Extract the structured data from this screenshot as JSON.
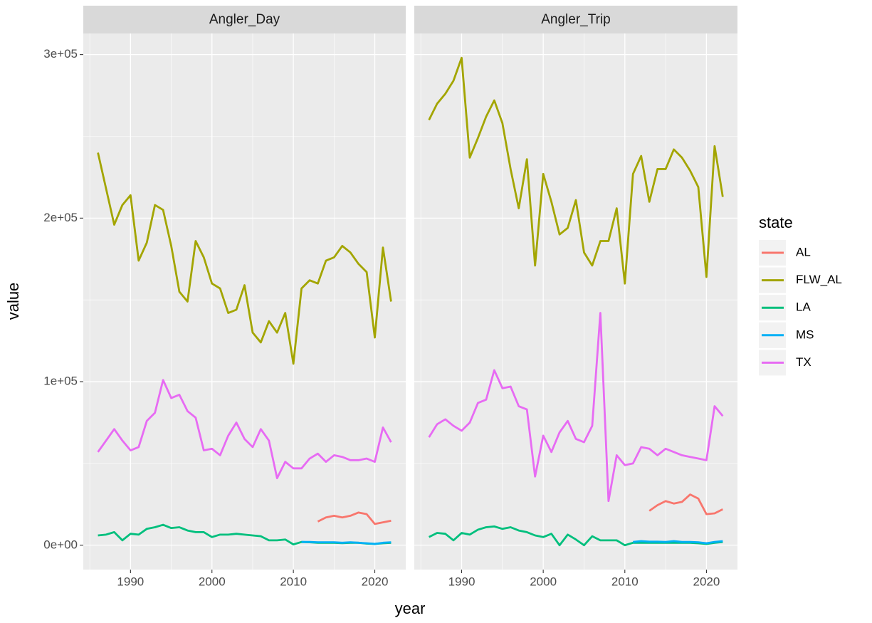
{
  "shared": {
    "xlabel": "year",
    "ylabel": "value",
    "legend_title": "state"
  },
  "chart_data": [
    {
      "type": "line",
      "title": "Angler_Day",
      "x": [
        1986,
        1987,
        1988,
        1989,
        1990,
        1991,
        1992,
        1993,
        1994,
        1995,
        1996,
        1997,
        1998,
        1999,
        2000,
        2001,
        2002,
        2003,
        2004,
        2005,
        2006,
        2007,
        2008,
        2009,
        2010,
        2011,
        2012,
        2013,
        2014,
        2015,
        2016,
        2017,
        2018,
        2019,
        2020,
        2021,
        2022
      ],
      "xlim": [
        1984.2,
        2023.8
      ],
      "xticks": [
        1990,
        2000,
        2010,
        2020
      ],
      "ylim": [
        -14900,
        312900
      ],
      "yticks": [
        {
          "value": 0,
          "label": "0e+00"
        },
        {
          "value": 100000,
          "label": "1e+05"
        },
        {
          "value": 200000,
          "label": "2e+05"
        },
        {
          "value": 300000,
          "label": "3e+05"
        }
      ],
      "grid": true,
      "series": [
        {
          "name": "AL",
          "color": "#F8766D",
          "values": [
            null,
            null,
            null,
            null,
            null,
            null,
            null,
            null,
            null,
            null,
            null,
            null,
            null,
            null,
            null,
            null,
            null,
            null,
            null,
            null,
            null,
            null,
            null,
            null,
            null,
            null,
            null,
            14500,
            17000,
            18000,
            17000,
            18000,
            20000,
            19000,
            13000,
            14000,
            15000
          ]
        },
        {
          "name": "FLW_AL",
          "color": "#A3A500",
          "values": [
            240000,
            218000,
            196000,
            208000,
            214000,
            174000,
            185000,
            208000,
            205000,
            183000,
            155000,
            149000,
            186000,
            176000,
            160000,
            157000,
            142000,
            144000,
            159000,
            130000,
            124000,
            137000,
            130000,
            142000,
            111000,
            157000,
            162000,
            160000,
            174000,
            176000,
            183000,
            179000,
            172000,
            167000,
            127000,
            182000,
            149000
          ]
        },
        {
          "name": "LA",
          "color": "#00BF7D",
          "values": [
            6000,
            6500,
            8000,
            3000,
            7000,
            6500,
            10000,
            11000,
            12500,
            10500,
            11000,
            9000,
            8000,
            8000,
            5000,
            6500,
            6500,
            7000,
            6500,
            6000,
            5500,
            3000,
            3000,
            3500,
            500,
            2000,
            1800,
            1500,
            1500,
            1500,
            1300,
            1500,
            1500,
            1000,
            800,
            1200,
            1500
          ]
        },
        {
          "name": "MS",
          "color": "#00B0F6",
          "values": [
            null,
            null,
            null,
            null,
            null,
            null,
            null,
            null,
            null,
            null,
            null,
            null,
            null,
            null,
            null,
            null,
            null,
            null,
            null,
            null,
            null,
            null,
            null,
            null,
            null,
            2000,
            2000,
            1800,
            1800,
            1800,
            1500,
            1800,
            1500,
            1200,
            800,
            1500,
            1800
          ]
        },
        {
          "name": "TX",
          "color": "#E76BF3",
          "values": [
            57000,
            64000,
            71000,
            64000,
            58000,
            60000,
            76000,
            81000,
            101000,
            90000,
            92000,
            82000,
            78000,
            58000,
            59000,
            55000,
            67000,
            75000,
            65000,
            60000,
            71000,
            64000,
            41000,
            51000,
            47000,
            47000,
            53000,
            56000,
            51000,
            55000,
            54000,
            52000,
            52000,
            53000,
            51000,
            72000,
            63000
          ]
        }
      ]
    },
    {
      "type": "line",
      "title": "Angler_Trip",
      "x": [
        1986,
        1987,
        1988,
        1989,
        1990,
        1991,
        1992,
        1993,
        1994,
        1995,
        1996,
        1997,
        1998,
        1999,
        2000,
        2001,
        2002,
        2003,
        2004,
        2005,
        2006,
        2007,
        2008,
        2009,
        2010,
        2011,
        2012,
        2013,
        2014,
        2015,
        2016,
        2017,
        2018,
        2019,
        2020,
        2021,
        2022
      ],
      "xlim": [
        1984.2,
        2023.8
      ],
      "xticks": [
        1990,
        2000,
        2010,
        2020
      ],
      "ylim": [
        -14900,
        312900
      ],
      "grid": true,
      "series": [
        {
          "name": "AL",
          "color": "#F8766D",
          "values": [
            null,
            null,
            null,
            null,
            null,
            null,
            null,
            null,
            null,
            null,
            null,
            null,
            null,
            null,
            null,
            null,
            null,
            null,
            null,
            null,
            null,
            null,
            null,
            null,
            null,
            null,
            null,
            21000,
            24500,
            27000,
            25500,
            26500,
            31000,
            28500,
            19000,
            19500,
            22000
          ]
        },
        {
          "name": "FLW_AL",
          "color": "#A3A500",
          "values": [
            260000,
            270000,
            276000,
            284000,
            298000,
            237000,
            249000,
            262000,
            272000,
            258000,
            230000,
            206000,
            236000,
            171000,
            227000,
            210000,
            190000,
            194000,
            211000,
            179000,
            171000,
            186000,
            186000,
            206000,
            160000,
            227000,
            238000,
            210000,
            230000,
            230000,
            242000,
            237000,
            229000,
            219000,
            164000,
            244000,
            213000
          ]
        },
        {
          "name": "LA",
          "color": "#00BF7D",
          "values": [
            5000,
            7500,
            7000,
            3000,
            7500,
            6500,
            9500,
            11000,
            11500,
            10000,
            11000,
            9000,
            8000,
            6000,
            5000,
            7000,
            0,
            6500,
            3500,
            0,
            5500,
            3000,
            3000,
            3000,
            0,
            1500,
            1500,
            1500,
            1500,
            1500,
            1500,
            1500,
            1500,
            1200,
            800,
            1500,
            2000
          ]
        },
        {
          "name": "MS",
          "color": "#00B0F6",
          "values": [
            null,
            null,
            null,
            null,
            null,
            null,
            null,
            null,
            null,
            null,
            null,
            null,
            null,
            null,
            null,
            null,
            null,
            null,
            null,
            null,
            null,
            null,
            null,
            null,
            null,
            2000,
            2500,
            2200,
            2200,
            2000,
            2500,
            2000,
            2000,
            1800,
            1200,
            2000,
            2500
          ]
        },
        {
          "name": "TX",
          "color": "#E76BF3",
          "values": [
            66000,
            74000,
            77000,
            73000,
            70000,
            75000,
            87000,
            89000,
            107000,
            96000,
            97000,
            85000,
            83000,
            42000,
            67000,
            57000,
            69000,
            76000,
            65000,
            63000,
            73000,
            142000,
            27000,
            55000,
            49000,
            50000,
            60000,
            59000,
            55000,
            59000,
            57000,
            55000,
            54000,
            53000,
            52000,
            85000,
            79000
          ]
        }
      ]
    }
  ]
}
